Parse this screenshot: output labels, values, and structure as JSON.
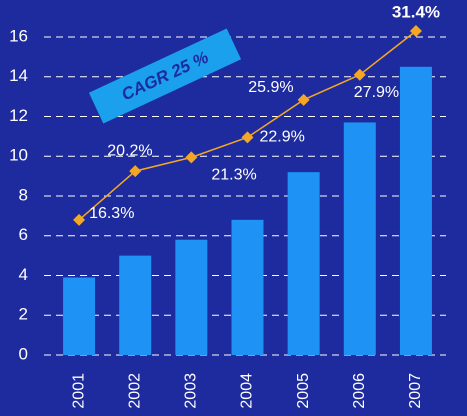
{
  "chart_data": {
    "type": "bar",
    "categories": [
      "2001",
      "2002",
      "2003",
      "2004",
      "2005",
      "2006",
      "2007"
    ],
    "series": [
      {
        "type": "bar",
        "color": "#1e92f5",
        "values": [
          3.9,
          5.0,
          5.8,
          6.8,
          9.2,
          11.7,
          14.5
        ]
      },
      {
        "type": "line",
        "color": "#f5a623",
        "axis": "y2",
        "values": [
          16.3,
          20.2,
          21.3,
          22.9,
          25.9,
          27.9,
          31.4
        ],
        "value_labels": [
          "16.3%",
          "20.2%",
          "21.3%",
          "22.9%",
          "25.9%",
          "27.9%",
          "31.4%"
        ]
      }
    ],
    "ylim": [
      0,
      18
    ],
    "yticks": [
      0,
      2,
      4,
      6,
      8,
      10,
      12,
      14,
      16
    ],
    "y2lim": [
      5.5,
      34.1
    ],
    "grid": true,
    "annotation": "CAGR 25 %"
  }
}
